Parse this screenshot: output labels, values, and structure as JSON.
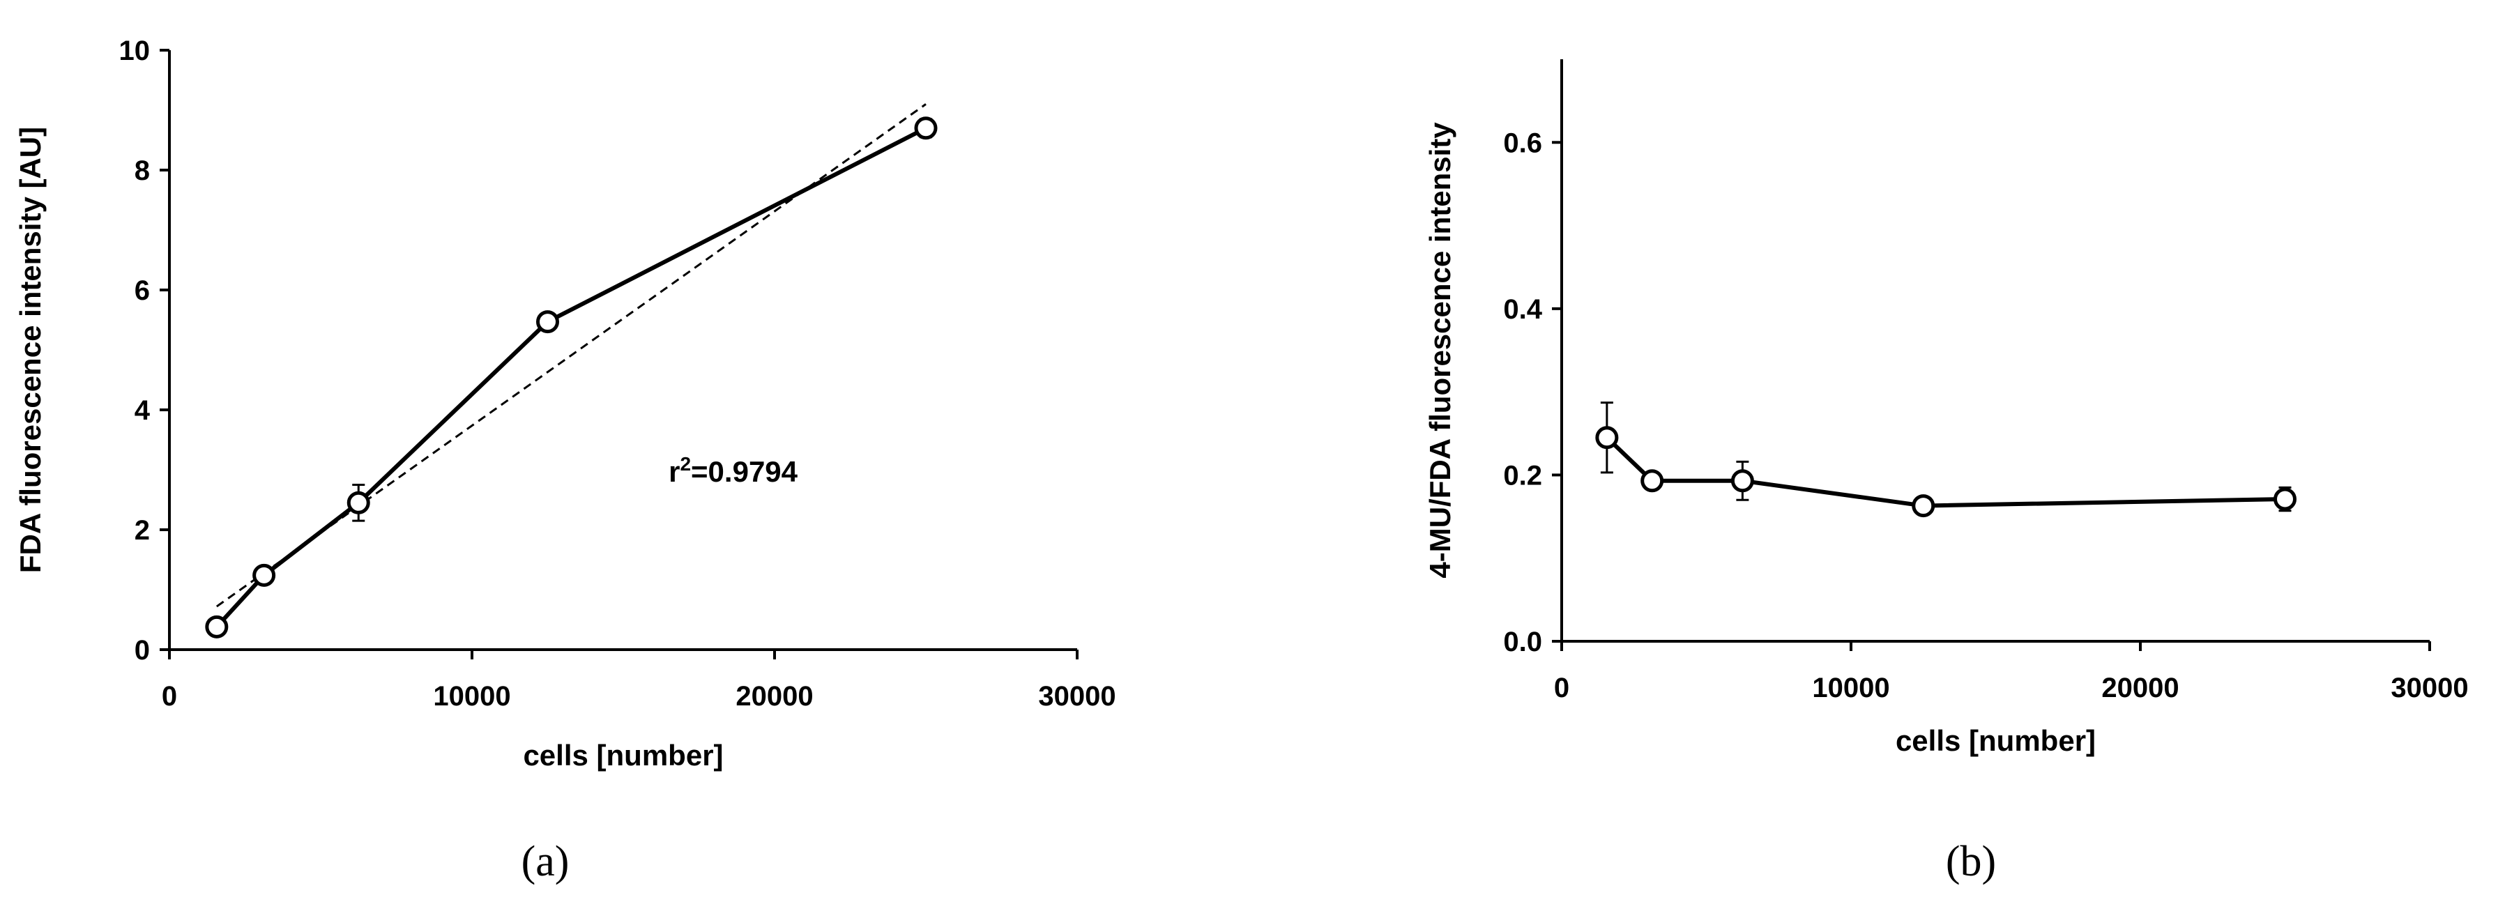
{
  "chart_data": [
    {
      "panel_label": "(a)",
      "type": "line",
      "xlabel": "cells [number]",
      "ylabel": "FDA fluorescence intensity [AU]",
      "xlim": [
        0,
        30000
      ],
      "ylim": [
        0,
        10
      ],
      "xticks": [
        0,
        10000,
        20000,
        30000
      ],
      "yticks": [
        0,
        2,
        4,
        6,
        8,
        10
      ],
      "marker": "open-circle",
      "series": [
        {
          "x": [
            1563,
            3125,
            6250,
            12500,
            25000
          ],
          "y": [
            0.38,
            1.24,
            2.45,
            5.47,
            8.7
          ],
          "error": [
            0.05,
            0.08,
            0.3,
            0.12,
            0.15
          ]
        }
      ],
      "trendline": {
        "style": "dashed",
        "x": [
          1563,
          25000
        ],
        "y": [
          0.72,
          9.1
        ]
      },
      "annotation": {
        "text_base": "r",
        "text_sup": "2",
        "text_rest": "=0.9794",
        "x": 16500,
        "y": 2.8
      },
      "grid": false,
      "legend": "none"
    },
    {
      "panel_label": "(b)",
      "type": "line",
      "xlabel": "cells [number]",
      "ylabel": "4-MU/FDA fluorescence intensity",
      "xlim": [
        0,
        30000
      ],
      "ylim": [
        0,
        0.7
      ],
      "xticks": [
        0,
        10000,
        20000,
        30000
      ],
      "yticks": [
        0.0,
        0.2,
        0.4,
        0.6
      ],
      "ytick_labels": [
        "0.0",
        "0.2",
        "0.4",
        "0.6"
      ],
      "marker": "open-circle",
      "series": [
        {
          "x": [
            1563,
            3125,
            6250,
            12500,
            25000
          ],
          "y": [
            0.245,
            0.193,
            0.193,
            0.163,
            0.171
          ],
          "error": [
            0.042,
            0.005,
            0.023,
            0.005,
            0.014
          ]
        }
      ],
      "grid": false,
      "legend": "none"
    }
  ]
}
